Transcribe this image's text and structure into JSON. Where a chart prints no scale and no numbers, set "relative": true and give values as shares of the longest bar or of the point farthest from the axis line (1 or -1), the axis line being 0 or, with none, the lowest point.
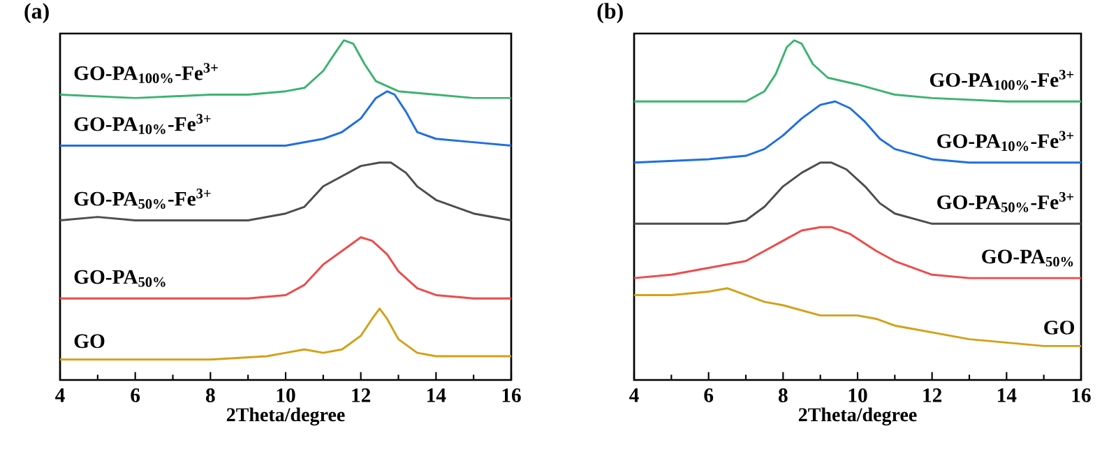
{
  "chart_data": [
    {
      "type": "line",
      "title": "(a)",
      "xlabel": "2Theta/degree",
      "relative": true,
      "xlim": [
        4,
        16
      ],
      "xticks": [
        4,
        6,
        8,
        10,
        12,
        14,
        16
      ],
      "series": [
        {
          "name": "GO-PA$_{100%}$-Fe$^{3+}$",
          "color": "#3cb371",
          "x": [
            4,
            6,
            8,
            9,
            10,
            10.5,
            11,
            11.3,
            11.55,
            11.8,
            12.1,
            12.4,
            13,
            14,
            15,
            16
          ],
          "values": [
            0.84,
            0.83,
            0.84,
            0.84,
            0.85,
            0.86,
            0.91,
            0.96,
            1.0,
            0.99,
            0.93,
            0.88,
            0.85,
            0.84,
            0.83,
            0.83
          ]
        },
        {
          "name": "GO-PA$_{10%}$-Fe$^{3+}$",
          "color": "#1f6fe0",
          "x": [
            4,
            6,
            8,
            10,
            11,
            11.5,
            12,
            12.4,
            12.7,
            12.9,
            13.2,
            13.5,
            14,
            15,
            16
          ],
          "values": [
            0.69,
            0.69,
            0.69,
            0.69,
            0.71,
            0.73,
            0.77,
            0.83,
            0.85,
            0.84,
            0.79,
            0.73,
            0.71,
            0.7,
            0.69
          ]
        },
        {
          "name": "GO-PA$_{50%}$-Fe$^{3+}$",
          "color": "#4d4d4d",
          "x": [
            4,
            5,
            6,
            8,
            9,
            10,
            10.5,
            11,
            11.5,
            12,
            12.5,
            12.8,
            13.2,
            13.5,
            14,
            15,
            16
          ],
          "values": [
            0.47,
            0.48,
            0.47,
            0.47,
            0.47,
            0.49,
            0.51,
            0.57,
            0.6,
            0.63,
            0.64,
            0.64,
            0.61,
            0.57,
            0.53,
            0.49,
            0.47
          ]
        },
        {
          "name": "GO-PA$_{50%}$",
          "color": "#f04a4a",
          "x": [
            4,
            6,
            8,
            9,
            10,
            10.5,
            11,
            11.5,
            12,
            12.3,
            12.7,
            13,
            13.5,
            14,
            15,
            16
          ],
          "values": [
            0.24,
            0.24,
            0.24,
            0.24,
            0.25,
            0.28,
            0.34,
            0.38,
            0.42,
            0.41,
            0.37,
            0.32,
            0.27,
            0.25,
            0.24,
            0.24
          ]
        },
        {
          "name": "GO",
          "color": "#d4a017",
          "x": [
            4,
            8,
            9.5,
            10,
            10.5,
            11,
            11.5,
            12,
            12.3,
            12.5,
            12.7,
            13,
            13.5,
            14,
            16
          ],
          "values": [
            0.06,
            0.06,
            0.07,
            0.08,
            0.09,
            0.08,
            0.09,
            0.13,
            0.18,
            0.21,
            0.18,
            0.12,
            0.08,
            0.07,
            0.07
          ]
        }
      ]
    },
    {
      "type": "line",
      "title": "(b)",
      "xlabel": "2Theta/degree",
      "relative": true,
      "xlim": [
        4,
        16
      ],
      "xticks": [
        4,
        6,
        8,
        10,
        12,
        14,
        16
      ],
      "series": [
        {
          "name": "GO-PA$_{100%}$-Fe$^{3+}$",
          "color": "#3cb371",
          "x": [
            4,
            5,
            7,
            7.5,
            7.8,
            8.1,
            8.3,
            8.5,
            8.8,
            9.2,
            10,
            11,
            12,
            14,
            16
          ],
          "values": [
            0.82,
            0.82,
            0.82,
            0.85,
            0.9,
            0.98,
            1.0,
            0.99,
            0.93,
            0.89,
            0.87,
            0.84,
            0.83,
            0.82,
            0.82
          ]
        },
        {
          "name": "GO-PA$_{10%}$-Fe$^{3+}$",
          "color": "#1f6fe0",
          "x": [
            4,
            6,
            7,
            7.5,
            8,
            8.5,
            9,
            9.4,
            9.8,
            10.2,
            10.6,
            11,
            12,
            13,
            16
          ],
          "values": [
            0.64,
            0.65,
            0.66,
            0.68,
            0.72,
            0.77,
            0.81,
            0.82,
            0.8,
            0.76,
            0.71,
            0.68,
            0.65,
            0.64,
            0.64
          ]
        },
        {
          "name": "GO-PA$_{50%}$-Fe$^{3+}$",
          "color": "#4d4d4d",
          "x": [
            4,
            6,
            6.5,
            7,
            7.5,
            8,
            8.5,
            9,
            9.3,
            9.7,
            10.2,
            10.6,
            11,
            12,
            14,
            16
          ],
          "values": [
            0.46,
            0.46,
            0.46,
            0.47,
            0.51,
            0.57,
            0.61,
            0.64,
            0.64,
            0.62,
            0.57,
            0.52,
            0.49,
            0.46,
            0.46,
            0.46
          ]
        },
        {
          "name": "GO-PA$_{50%}$",
          "color": "#f04a4a",
          "x": [
            4,
            5,
            6,
            7,
            7.5,
            8,
            8.5,
            9,
            9.3,
            9.8,
            10.5,
            11,
            12,
            13,
            16
          ],
          "values": [
            0.3,
            0.31,
            0.33,
            0.35,
            0.38,
            0.41,
            0.44,
            0.45,
            0.45,
            0.43,
            0.38,
            0.35,
            0.31,
            0.3,
            0.3
          ]
        },
        {
          "name": "GO",
          "color": "#d4a017",
          "x": [
            4,
            5,
            6,
            6.5,
            7,
            7.5,
            8,
            9,
            10,
            10.5,
            11,
            11.5,
            12,
            13,
            14,
            15,
            16
          ],
          "values": [
            0.25,
            0.25,
            0.26,
            0.27,
            0.25,
            0.23,
            0.22,
            0.19,
            0.19,
            0.18,
            0.16,
            0.15,
            0.14,
            0.12,
            0.11,
            0.1,
            0.1
          ]
        }
      ]
    }
  ]
}
